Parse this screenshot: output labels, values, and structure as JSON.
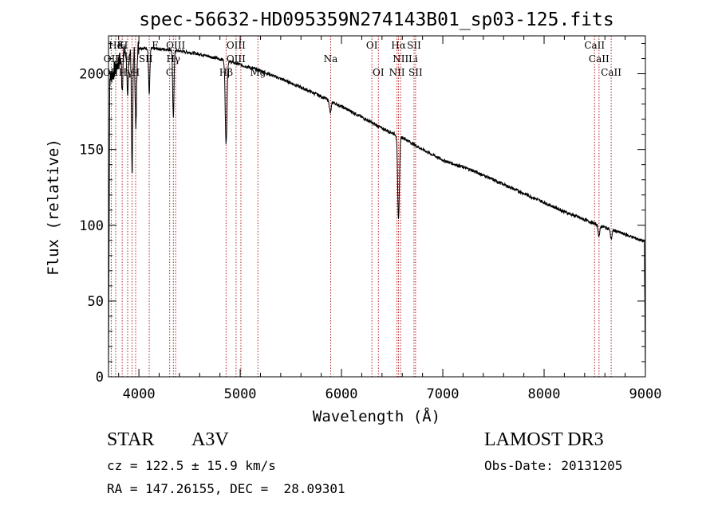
{
  "chart_data": {
    "type": "line",
    "title": "spec-56632-HD095359N274143B01_sp03-125.fits",
    "xlabel": "Wavelength (Å)",
    "ylabel": "Flux (relative)",
    "xlim": [
      3700,
      9000
    ],
    "ylim": [
      0,
      225
    ],
    "xticks": [
      4000,
      5000,
      6000,
      7000,
      8000,
      9000
    ],
    "yticks": [
      0,
      50,
      100,
      150,
      200
    ],
    "continuum": [
      [
        3700,
        195
      ],
      [
        3850,
        214
      ],
      [
        4000,
        217
      ],
      [
        4300,
        216
      ],
      [
        4600,
        213
      ],
      [
        4900,
        208
      ],
      [
        5200,
        202
      ],
      [
        5500,
        194
      ],
      [
        5800,
        185
      ],
      [
        6100,
        175
      ],
      [
        6400,
        164
      ],
      [
        6600,
        158
      ],
      [
        6800,
        150
      ],
      [
        7000,
        143
      ],
      [
        7300,
        136
      ],
      [
        7600,
        127
      ],
      [
        7900,
        118
      ],
      [
        8200,
        109
      ],
      [
        8500,
        101
      ],
      [
        8800,
        94
      ],
      [
        9000,
        89
      ]
    ],
    "absorption": [
      [
        3835,
        20
      ],
      [
        3889,
        35
      ],
      [
        3933,
        80
      ],
      [
        3970,
        55
      ],
      [
        4102,
        30
      ],
      [
        4340,
        45
      ],
      [
        4861,
        55
      ],
      [
        6563,
        55
      ],
      [
        5890,
        8
      ],
      [
        8542,
        7
      ],
      [
        8662,
        6
      ]
    ],
    "lines": [
      {
        "label": "Hδ",
        "x": 3771,
        "row": 1
      },
      {
        "label": "K",
        "x": 3820,
        "row": 1
      },
      {
        "label": "H",
        "x": 3850,
        "row": 1
      },
      {
        "label": "OII",
        "x": 3727,
        "row": 2
      },
      {
        "label": "He",
        "x": 3853,
        "row": 2
      },
      {
        "label": "SII",
        "x": 4068,
        "row": 2
      },
      {
        "label": "OII",
        "x": 3720,
        "row": 3
      },
      {
        "label": "Hγ",
        "x": 3870,
        "row": 3
      },
      {
        "label": "H",
        "x": 3968,
        "row": 3
      },
      {
        "label": "F",
        "x": 4160,
        "row": 1
      },
      {
        "label": "OIII",
        "x": 4363,
        "row": 1
      },
      {
        "label": "Hγ",
        "x": 4340,
        "row": 2
      },
      {
        "label": "G",
        "x": 4304,
        "row": 3
      },
      {
        "label": "OIII",
        "x": 4959,
        "row": 1
      },
      {
        "label": "OIII",
        "x": 4959,
        "row": 2
      },
      {
        "label": "Hβ",
        "x": 4861,
        "row": 3
      },
      {
        "label": "Mg",
        "x": 5175,
        "row": 3
      },
      {
        "label": "Na",
        "x": 5893,
        "row": 2
      },
      {
        "label": "OI",
        "x": 6300,
        "row": 1
      },
      {
        "label": "OI",
        "x": 6364,
        "row": 3
      },
      {
        "label": "Hα",
        "x": 6563,
        "row": 1
      },
      {
        "label": "SII",
        "x": 6716,
        "row": 1
      },
      {
        "label": "NII",
        "x": 6584,
        "row": 2
      },
      {
        "label": "Li",
        "x": 6708,
        "row": 2
      },
      {
        "label": "NII",
        "x": 6548,
        "row": 3
      },
      {
        "label": "SII",
        "x": 6731,
        "row": 3
      },
      {
        "label": "CaII",
        "x": 8498,
        "row": 1
      },
      {
        "label": "CaII",
        "x": 8542,
        "row": 2
      },
      {
        "label": "CaII",
        "x": 8662,
        "row": 3
      }
    ],
    "linemarks": [
      3727,
      3771,
      3835,
      3889,
      3933,
      3968,
      4102,
      4304,
      4340,
      4363,
      4861,
      4959,
      5007,
      5175,
      5893,
      6300,
      6364,
      6548,
      6563,
      6584,
      6716,
      6731,
      8498,
      8542,
      8662
    ]
  },
  "info": {
    "object_class": "STAR",
    "subclass": "A3V",
    "survey": "LAMOST DR3",
    "redshift": "cz = 122.5 ± 15.9 km/s",
    "obs_date": "Obs-Date: 20131205",
    "coords": "RA = 147.26155, DEC =  28.09301"
  },
  "colors": {
    "marker": "#b22222",
    "ink": "#000000"
  }
}
